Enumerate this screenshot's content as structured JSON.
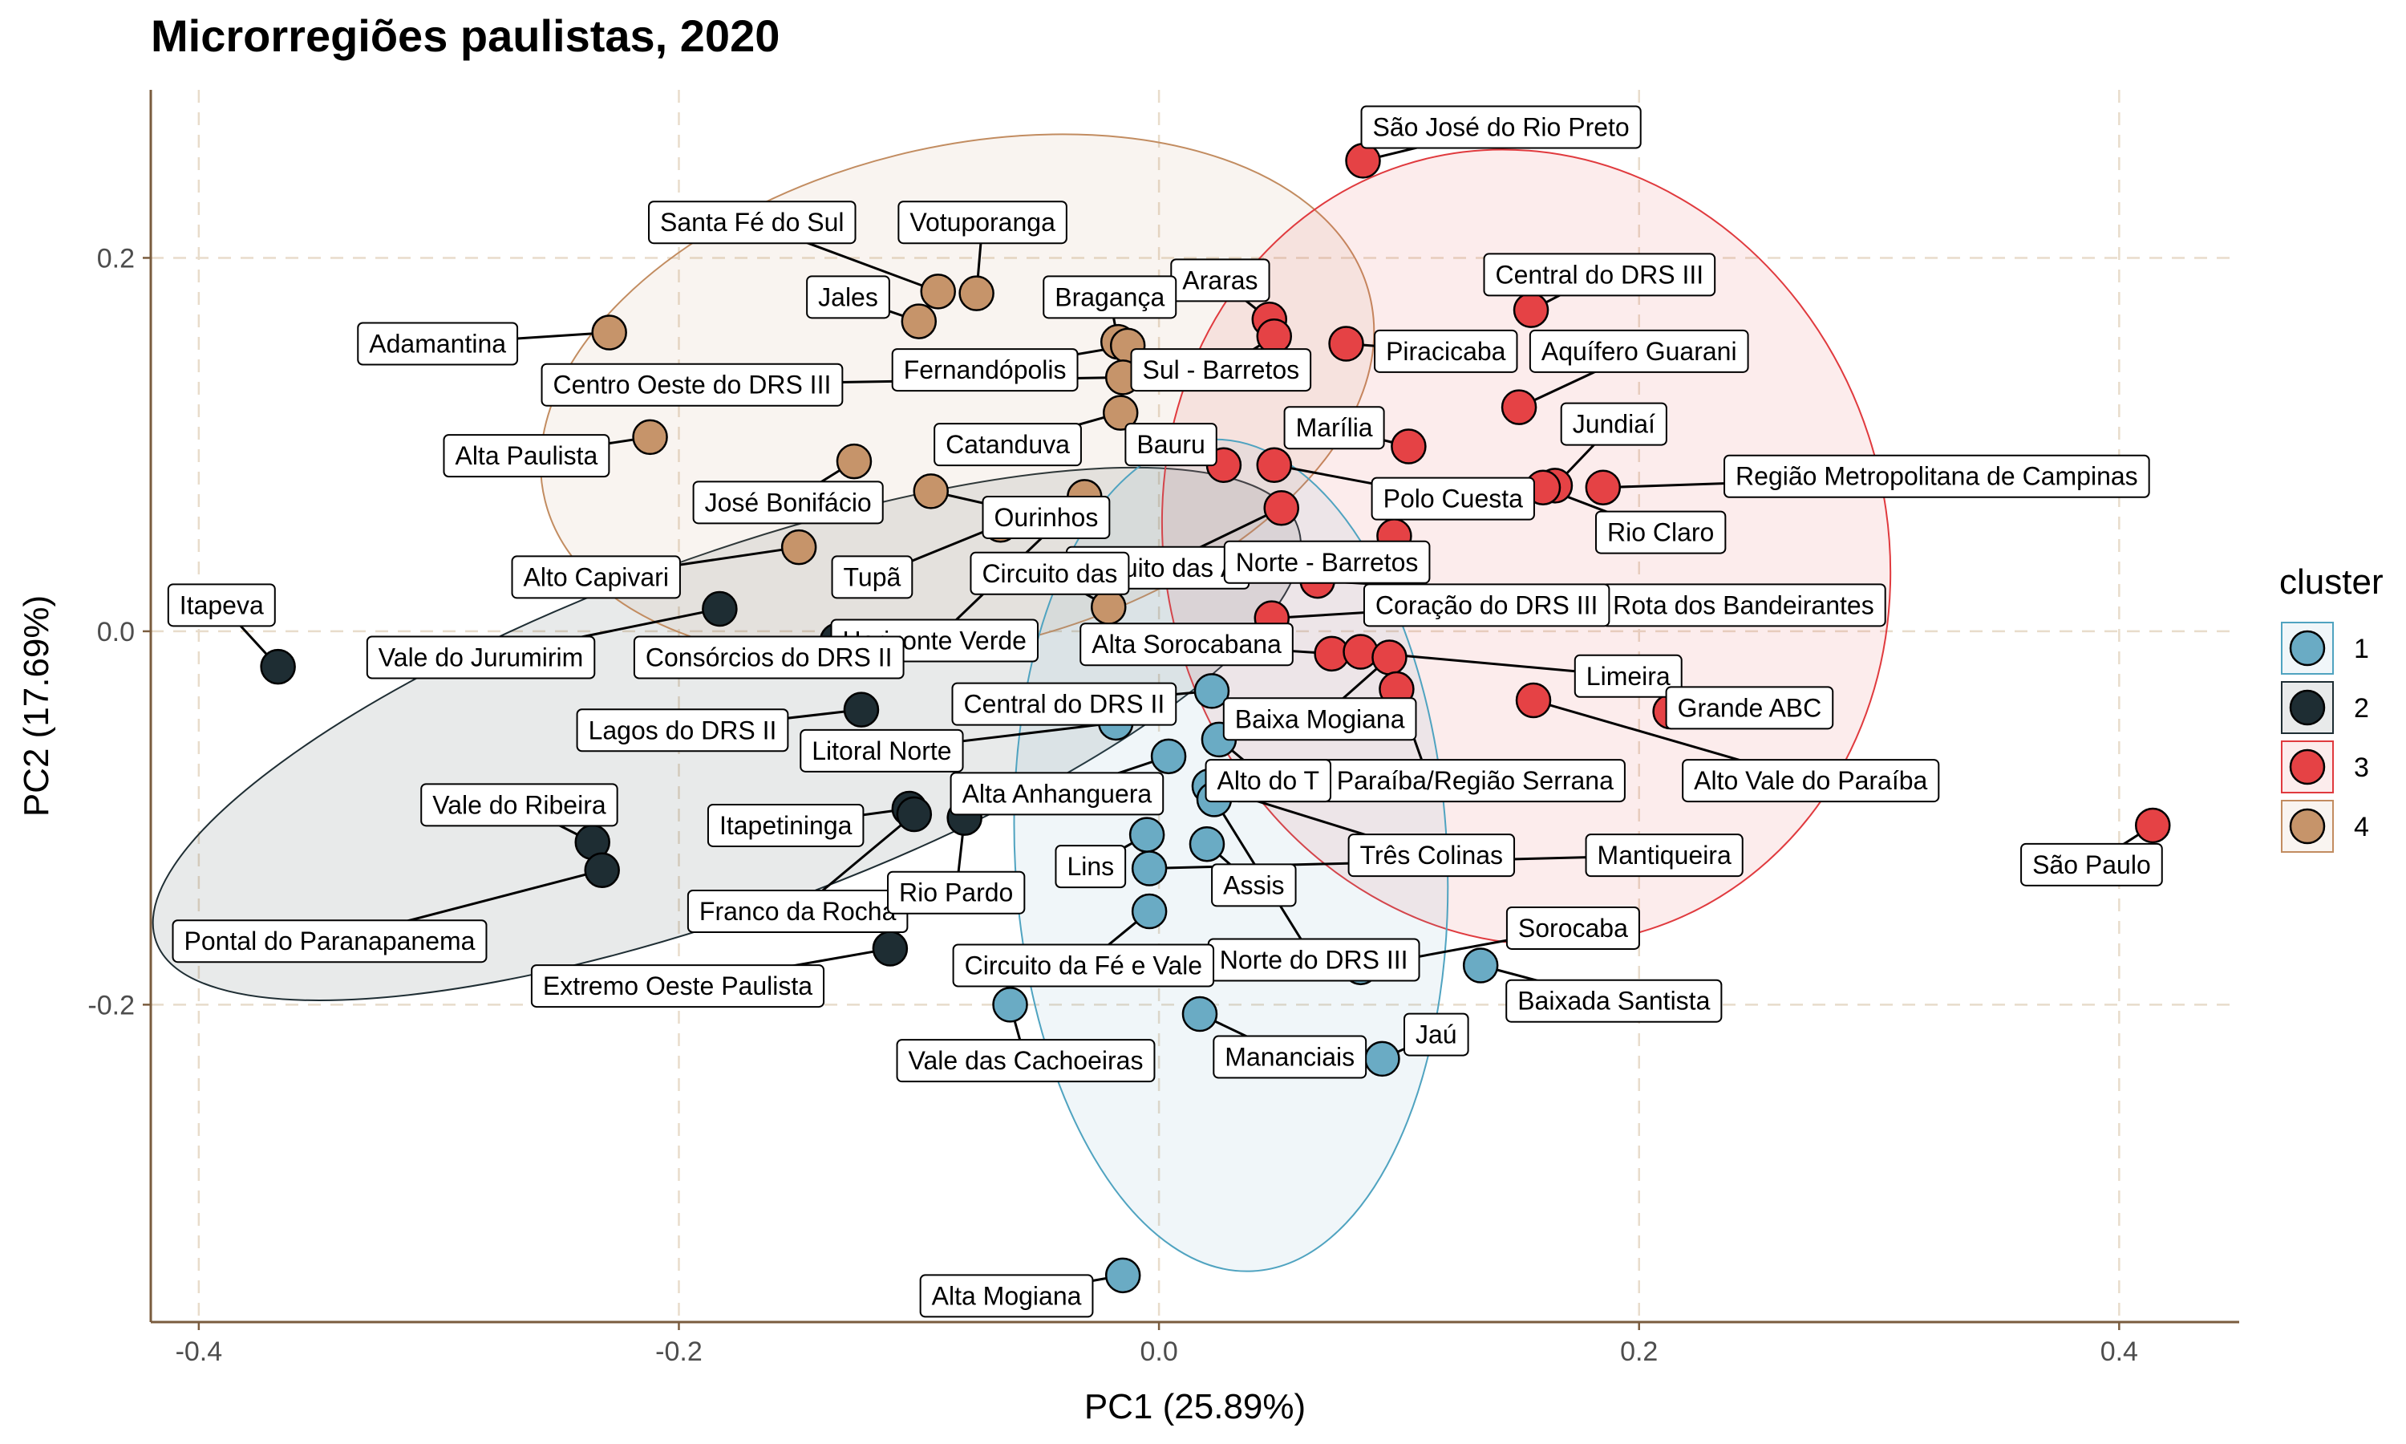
{
  "chart_data": {
    "type": "scatter",
    "title": "Microrregiões paulistas, 2020",
    "xlabel": "PC1 (25.89%)",
    "ylabel": "PC2 (17.69%)",
    "xlim": [
      -0.42,
      0.45
    ],
    "ylim": [
      -0.37,
      0.29
    ],
    "xticks": [
      -0.4,
      -0.2,
      0.0,
      0.2,
      0.4
    ],
    "xtick_labels": [
      "-0.4",
      "-0.2",
      "0.0",
      "0.2",
      "0.4"
    ],
    "yticks": [
      -0.2,
      0.0,
      0.2
    ],
    "ytick_labels": [
      "-0.2",
      "0.0",
      "0.2"
    ],
    "grid": true,
    "legend": {
      "title": "cluster",
      "position": "right",
      "entries": [
        {
          "label": "1",
          "fill": "#6AABC4",
          "ellipse": "#4FA3C0"
        },
        {
          "label": "2",
          "fill": "#1E2D33",
          "ellipse": "#1E2D33"
        },
        {
          "label": "3",
          "fill": "#E54245",
          "ellipse": "#E03A3E"
        },
        {
          "label": "4",
          "fill": "#C6946A",
          "ellipse": "#C28C60"
        }
      ]
    },
    "colors": {
      "axis": "#7A5C3E",
      "grid": "#E8DCCB"
    },
    "ellipses": [
      {
        "cluster": "2",
        "cx": -0.18,
        "cy": -0.055,
        "rx": 0.253,
        "ry": 0.095,
        "angle_deg": 20
      },
      {
        "cluster": "4",
        "cx": -0.084,
        "cy": 0.125,
        "rx": 0.177,
        "ry": 0.134,
        "angle_deg": 14
      },
      {
        "cluster": "3",
        "cx": 0.153,
        "cy": 0.045,
        "rx": 0.15,
        "ry": 0.215,
        "angle_deg": 18
      },
      {
        "cluster": "1",
        "cx": 0.03,
        "cy": -0.12,
        "rx": 0.09,
        "ry": 0.223,
        "angle_deg": 3
      }
    ],
    "points": [
      {
        "name": "São José do Rio Preto",
        "x": 0.085,
        "y": 0.252,
        "cluster": "3"
      },
      {
        "name": "Central do DRS III",
        "x": 0.155,
        "y": 0.172,
        "cluster": "3"
      },
      {
        "name": "Aquífero Guarani",
        "x": 0.15,
        "y": 0.12,
        "cluster": "3"
      },
      {
        "name": "Jundiaí",
        "x": 0.165,
        "y": 0.078,
        "cluster": "3"
      },
      {
        "name": "Região Metropolitana de Campinas",
        "x": 0.185,
        "y": 0.077,
        "cluster": "3"
      },
      {
        "name": "Rio Claro",
        "x": 0.16,
        "y": 0.077,
        "cluster": "3"
      },
      {
        "name": "Araras",
        "x": 0.046,
        "y": 0.167,
        "cluster": "3"
      },
      {
        "name": "Piracicaba",
        "x": 0.078,
        "y": 0.154,
        "cluster": "3"
      },
      {
        "name": "Sul - Barretos",
        "x": 0.048,
        "y": 0.158,
        "cluster": "3"
      },
      {
        "name": "Marília",
        "x": 0.104,
        "y": 0.099,
        "cluster": "3"
      },
      {
        "name": "Bauru",
        "x": 0.027,
        "y": 0.089,
        "cluster": "3"
      },
      {
        "name": "Polo Cuesta",
        "x": 0.048,
        "y": 0.089,
        "cluster": "3"
      },
      {
        "name": "Circuito das Águas",
        "x": 0.051,
        "y": 0.066,
        "cluster": "3"
      },
      {
        "name": "Norte - Barretos",
        "x": 0.098,
        "y": 0.051,
        "cluster": "3"
      },
      {
        "name": "Rota dos Bandeirantes",
        "x": 0.066,
        "y": 0.027,
        "cluster": "3"
      },
      {
        "name": "Coração do DRS III",
        "x": 0.047,
        "y": 0.007,
        "cluster": "3"
      },
      {
        "name": "Alta Sorocabana",
        "x": 0.072,
        "y": -0.012,
        "cluster": "3"
      },
      {
        "name": "Limeira",
        "x": 0.084,
        "y": -0.011,
        "cluster": "3"
      },
      {
        "name": "Baixa Mogiana",
        "x": 0.096,
        "y": -0.014,
        "cluster": "3"
      },
      {
        "name": "Vale do Paraíba/Região Serrana",
        "x": 0.099,
        "y": -0.031,
        "cluster": "3"
      },
      {
        "name": "Alto Vale do Paraíba",
        "x": 0.156,
        "y": -0.037,
        "cluster": "3"
      },
      {
        "name": "Grande ABC",
        "x": 0.213,
        "y": -0.043,
        "cluster": "3"
      },
      {
        "name": "São Paulo",
        "x": 0.414,
        "y": -0.104,
        "cluster": "3"
      },
      {
        "name": "Adamantina",
        "x": -0.229,
        "y": 0.16,
        "cluster": "4"
      },
      {
        "name": "Santa Fé do Sul",
        "x": -0.092,
        "y": 0.182,
        "cluster": "4"
      },
      {
        "name": "Votuporanga",
        "x": -0.076,
        "y": 0.181,
        "cluster": "4"
      },
      {
        "name": "Jales",
        "x": -0.1,
        "y": 0.166,
        "cluster": "4"
      },
      {
        "name": "Bragança",
        "x": -0.017,
        "y": 0.155,
        "cluster": "4"
      },
      {
        "name": "Fernandópolis",
        "x": -0.013,
        "y": 0.153,
        "cluster": "4"
      },
      {
        "name": "Centro Oeste do DRS III",
        "x": -0.015,
        "y": 0.136,
        "cluster": "4"
      },
      {
        "name": "Catanduva",
        "x": -0.016,
        "y": 0.117,
        "cluster": "4"
      },
      {
        "name": "Alta Paulista",
        "x": -0.212,
        "y": 0.104,
        "cluster": "4"
      },
      {
        "name": "José Bonifácio",
        "x": -0.127,
        "y": 0.091,
        "cluster": "4"
      },
      {
        "name": "Ourinhos",
        "x": -0.095,
        "y": 0.075,
        "cluster": "4"
      },
      {
        "name": "Horizonte Verde",
        "x": -0.031,
        "y": 0.072,
        "cluster": "4"
      },
      {
        "name": "Tupã",
        "x": -0.066,
        "y": 0.057,
        "cluster": "4"
      },
      {
        "name": "Alto Capivari",
        "x": -0.15,
        "y": 0.045,
        "cluster": "4"
      },
      {
        "name": "Circuito das Frutas",
        "x": -0.021,
        "y": 0.013,
        "cluster": "4"
      },
      {
        "name": "Itapeva",
        "x": -0.367,
        "y": -0.019,
        "cluster": "2"
      },
      {
        "name": "Vale do Jurumirim",
        "x": -0.183,
        "y": 0.012,
        "cluster": "2"
      },
      {
        "name": "Consórcios do DRS II",
        "x": -0.134,
        "y": -0.005,
        "cluster": "2"
      },
      {
        "name": "Lagos do DRS II",
        "x": -0.124,
        "y": -0.042,
        "cluster": "2"
      },
      {
        "name": "Vale do Ribeira",
        "x": -0.236,
        "y": -0.113,
        "cluster": "2"
      },
      {
        "name": "Pontal do Paranapanema",
        "x": -0.232,
        "y": -0.128,
        "cluster": "2"
      },
      {
        "name": "Itapetininga",
        "x": -0.104,
        "y": -0.095,
        "cluster": "2"
      },
      {
        "name": "Franco da Rocha",
        "x": -0.102,
        "y": -0.098,
        "cluster": "2"
      },
      {
        "name": "Rio Pardo",
        "x": -0.081,
        "y": -0.1,
        "cluster": "2"
      },
      {
        "name": "Extremo Oeste Paulista",
        "x": -0.112,
        "y": -0.17,
        "cluster": "2"
      },
      {
        "name": "Central do DRS II",
        "x": 0.022,
        "y": -0.032,
        "cluster": "1"
      },
      {
        "name": "Litoral Norte",
        "x": -0.018,
        "y": -0.049,
        "cluster": "1"
      },
      {
        "name": "Alto do Tietê",
        "x": 0.025,
        "y": -0.058,
        "cluster": "1"
      },
      {
        "name": "Alta Anhanguera",
        "x": 0.004,
        "y": -0.067,
        "cluster": "1"
      },
      {
        "name": "Três Colinas",
        "x": 0.021,
        "y": -0.083,
        "cluster": "1"
      },
      {
        "name": "Norte do DRS III",
        "x": 0.023,
        "y": -0.09,
        "cluster": "1"
      },
      {
        "name": "Lins",
        "x": -0.005,
        "y": -0.109,
        "cluster": "1"
      },
      {
        "name": "Assis",
        "x": 0.02,
        "y": -0.114,
        "cluster": "1"
      },
      {
        "name": "Mantiqueira",
        "x": -0.004,
        "y": -0.127,
        "cluster": "1"
      },
      {
        "name": "Circuito da Fé e Vale Histórico",
        "x": -0.004,
        "y": -0.15,
        "cluster": "1"
      },
      {
        "name": "Sorocaba",
        "x": 0.084,
        "y": -0.18,
        "cluster": "1"
      },
      {
        "name": "Baixada Santista",
        "x": 0.134,
        "y": -0.179,
        "cluster": "1"
      },
      {
        "name": "Vale das Cachoeiras",
        "x": -0.062,
        "y": -0.2,
        "cluster": "1"
      },
      {
        "name": "Mananciais",
        "x": 0.017,
        "y": -0.205,
        "cluster": "1"
      },
      {
        "name": "Jaú",
        "x": 0.093,
        "y": -0.229,
        "cluster": "1"
      },
      {
        "name": "Alta Mogiana",
        "x": -0.015,
        "y": -0.345,
        "cluster": "1"
      }
    ],
    "labels": [
      {
        "name": "São José do Rio Preto",
        "text": "São José do Rio Preto",
        "lx": 0.1425,
        "ly": 0.27
      },
      {
        "name": "Central do DRS III",
        "text": "Central do DRS III",
        "lx": 0.1835,
        "ly": 0.191
      },
      {
        "name": "Aquífero Guarani",
        "text": "Aquífero Guarani",
        "lx": 0.2,
        "ly": 0.15
      },
      {
        "name": "Jundiaí",
        "text": "Jundiaí",
        "lx": 0.1895,
        "ly": 0.111
      },
      {
        "name": "Região Metropolitana de Campinas",
        "text": "Região Metropolitana de Campinas",
        "lx": 0.324,
        "ly": 0.083
      },
      {
        "name": "Rio Claro",
        "text": "Rio Claro",
        "lx": 0.209,
        "ly": 0.053
      },
      {
        "name": "Araras",
        "text": "Araras",
        "lx": 0.0255,
        "ly": 0.188
      },
      {
        "name": "Piracicaba",
        "text": "Piracicaba",
        "lx": 0.1195,
        "ly": 0.15
      },
      {
        "name": "Sul - Barretos",
        "text": "Sul - Barretos",
        "lx": 0.0258,
        "ly": 0.14
      },
      {
        "name": "Marília",
        "text": "Marília",
        "lx": 0.073,
        "ly": 0.109
      },
      {
        "name": "Bauru",
        "text": "Bauru",
        "lx": 0.005,
        "ly": 0.1
      },
      {
        "name": "Polo Cuesta",
        "text": "Polo Cuesta",
        "lx": 0.1225,
        "ly": 0.071
      },
      {
        "name": "Circuito das Águas",
        "text": "Circuito das Á",
        "lx": -0.0005,
        "ly": 0.034
      },
      {
        "name": "Norte - Barretos",
        "text": "Norte - Barretos",
        "lx": 0.07,
        "ly": 0.037
      },
      {
        "name": "Rota dos Bandeirantes",
        "text": "Rota dos Bandeirantes",
        "lx": 0.2435,
        "ly": 0.014
      },
      {
        "name": "Coração do DRS III",
        "text": "Coração do DRS III",
        "lx": 0.1365,
        "ly": 0.014
      },
      {
        "name": "Alta Sorocabana",
        "text": "Alta Sorocabana",
        "lx": 0.0115,
        "ly": -0.007
      },
      {
        "name": "Limeira",
        "text": "Limeira",
        "lx": 0.1955,
        "ly": -0.024
      },
      {
        "name": "Baixa Mogiana",
        "text": "Baixa Mogiana",
        "lx": 0.067,
        "ly": -0.047
      },
      {
        "name": "Vale do Paraíba/Região Serrana",
        "text": "Vale do Paraíba/Região Serrana",
        "lx": 0.1125,
        "ly": -0.08
      },
      {
        "name": "Alto Vale do Paraíba",
        "text": "Alto Vale do Paraíba",
        "lx": 0.2715,
        "ly": -0.08
      },
      {
        "name": "Grande ABC",
        "text": "Grande ABC",
        "lx": 0.246,
        "ly": -0.041
      },
      {
        "name": "São Paulo",
        "text": "São Paulo",
        "lx": 0.3885,
        "ly": -0.125
      },
      {
        "name": "Adamantina",
        "text": "Adamantina",
        "lx": -0.3005,
        "ly": 0.154
      },
      {
        "name": "Santa Fé do Sul",
        "text": "Santa Fé do Sul",
        "lx": -0.1695,
        "ly": 0.219
      },
      {
        "name": "Votuporanga",
        "text": "Votuporanga",
        "lx": -0.0735,
        "ly": 0.219
      },
      {
        "name": "Jales",
        "text": "Jales",
        "lx": -0.1295,
        "ly": 0.179
      },
      {
        "name": "Bragança",
        "text": "Bragança",
        "lx": -0.0205,
        "ly": 0.179
      },
      {
        "name": "Fernandópolis",
        "text": "Fernandópolis",
        "lx": -0.0725,
        "ly": 0.14
      },
      {
        "name": "Centro Oeste do DRS III",
        "text": "Centro Oeste do DRS III",
        "lx": -0.1945,
        "ly": 0.132
      },
      {
        "name": "Catanduva",
        "text": "Catanduva",
        "lx": -0.063,
        "ly": 0.1
      },
      {
        "name": "Alta Paulista",
        "text": "Alta Paulista",
        "lx": -0.2635,
        "ly": 0.094
      },
      {
        "name": "José Bonifácio",
        "text": "José Bonifácio",
        "lx": -0.1545,
        "ly": 0.069
      },
      {
        "name": "Ourinhos",
        "text": "Ourinhos",
        "lx": -0.047,
        "ly": 0.061
      },
      {
        "name": "Horizonte Verde",
        "text": "Horizonte Verde",
        "lx": -0.0935,
        "ly": -0.005
      },
      {
        "name": "Tupã",
        "text": "Tupã",
        "lx": -0.1195,
        "ly": 0.029
      },
      {
        "name": "Alto Capivari",
        "text": "Alto Capivari",
        "lx": -0.2345,
        "ly": 0.029
      },
      {
        "name": "Circuito das Frutas",
        "text": "Circuito das",
        "lx": -0.0455,
        "ly": 0.031
      },
      {
        "name": "Itapeva",
        "text": "Itapeva",
        "lx": -0.3905,
        "ly": 0.014
      },
      {
        "name": "Vale do Jurumirim",
        "text": "Vale do Jurumirim",
        "lx": -0.2825,
        "ly": -0.014
      },
      {
        "name": "Consórcios do DRS II",
        "text": "Consórcios do DRS II",
        "lx": -0.1625,
        "ly": -0.014
      },
      {
        "name": "Lagos do DRS II",
        "text": "Lagos do DRS II",
        "lx": -0.1985,
        "ly": -0.053
      },
      {
        "name": "Vale do Ribeira",
        "text": "Vale do Ribeira",
        "lx": -0.2665,
        "ly": -0.093
      },
      {
        "name": "Pontal do Paranapanema",
        "text": "Pontal do Paranapanema",
        "lx": -0.3455,
        "ly": -0.166
      },
      {
        "name": "Itapetininga",
        "text": "Itapetininga",
        "lx": -0.1555,
        "ly": -0.104
      },
      {
        "name": "Franco da Rocha",
        "text": "Franco da Rocha",
        "lx": -0.1505,
        "ly": -0.15
      },
      {
        "name": "Rio Pardo",
        "text": "Rio Pardo",
        "lx": -0.0845,
        "ly": -0.14
      },
      {
        "name": "Extremo Oeste Paulista",
        "text": "Extremo Oeste Paulista",
        "lx": -0.2005,
        "ly": -0.19
      },
      {
        "name": "Central do DRS II",
        "text": "Central do DRS II",
        "lx": -0.0395,
        "ly": -0.039
      },
      {
        "name": "Litoral Norte",
        "text": "Litoral Norte",
        "lx": -0.1155,
        "ly": -0.064
      },
      {
        "name": "Alto do Tietê",
        "text": "Alto do T",
        "lx": 0.0455,
        "ly": -0.08
      },
      {
        "name": "Alta Anhanguera",
        "text": "Alta Anhanguera",
        "lx": -0.0425,
        "ly": -0.087
      },
      {
        "name": "Três Colinas",
        "text": "Três Colinas",
        "lx": 0.1135,
        "ly": -0.12
      },
      {
        "name": "Norte do DRS III",
        "text": "Norte do DRS III",
        "lx": 0.0645,
        "ly": -0.176
      },
      {
        "name": "Lins",
        "text": "Lins",
        "lx": -0.0285,
        "ly": -0.126
      },
      {
        "name": "Assis",
        "text": "Assis",
        "lx": 0.0395,
        "ly": -0.136
      },
      {
        "name": "Mantiqueira",
        "text": "Mantiqueira",
        "lx": 0.2105,
        "ly": -0.12
      },
      {
        "name": "Circuito da Fé e Vale Histórico",
        "text": "Circuito da Fé e Vale",
        "lx": -0.0315,
        "ly": -0.179
      },
      {
        "name": "Sorocaba",
        "text": "Sorocaba",
        "lx": 0.1725,
        "ly": -0.159
      },
      {
        "name": "Baixada Santista",
        "text": "Baixada Santista",
        "lx": 0.1895,
        "ly": -0.198
      },
      {
        "name": "Vale das Cachoeiras",
        "text": "Vale das Cachoeiras",
        "lx": -0.0555,
        "ly": -0.23
      },
      {
        "name": "Mananciais",
        "text": "Mananciais",
        "lx": 0.0545,
        "ly": -0.228
      },
      {
        "name": "Jaú",
        "text": "Jaú",
        "lx": 0.1155,
        "ly": -0.216
      },
      {
        "name": "Alta Mogiana",
        "text": "Alta Mogiana",
        "lx": -0.0635,
        "ly": -0.356
      }
    ]
  }
}
